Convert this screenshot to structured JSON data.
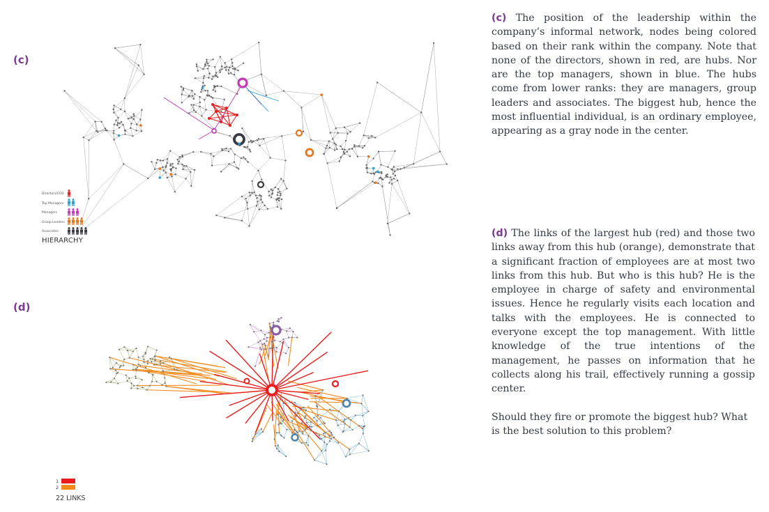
{
  "panel_c": {
    "label": "(c)",
    "legend": {
      "title": "HIERARCHY",
      "rows": [
        {
          "label": "Directors/CEO",
          "count": 1,
          "color": "#e02020"
        },
        {
          "label": "Top Managers",
          "count": 2,
          "color": "#2a9fd6"
        },
        {
          "label": "Managers",
          "count": 3,
          "color": "#c43bb5"
        },
        {
          "label": "Group Leaders",
          "count": 4,
          "color": "#e8731a"
        },
        {
          "label": "Associates",
          "count": 5,
          "color": "#3a3a44"
        }
      ]
    }
  },
  "panel_d": {
    "label": "(d)",
    "legend": {
      "rows": [
        {
          "label": "1",
          "color": "#e81c1c"
        },
        {
          "label": "2",
          "color": "#f28a1e"
        }
      ],
      "title": "22 LINKS"
    }
  },
  "caption_c": {
    "label": "(c)",
    "text": "The position of the leadership within the company’s informal network, nodes being colored based on their rank within the company. Note that none of the directors, shown in red, are hubs. Nor are the top managers, shown in blue. The hubs come from lower ranks: they are managers, group leaders and associates. The biggest hub, hence the most influential individual, is an ordinary employee, appearing as a gray node in the center."
  },
  "caption_d": {
    "label": "(d)",
    "text": "The links of the largest hub (red) and those two links away from this hub (orange), demonstrate that a significant fraction of employees are at most two links from this hub. But who is this hub? He is the employee in charge of safety and environmental issues. Hence he regularly visits each location and talks with the employees. He is connected to everyone except the top management. With little knowledge of the true intentions of the management, he passes on information that he collects along his trail, effectively running a gossip center.",
    "question": "Should they fire or promote the biggest hub? What is the best solution to this problem?"
  },
  "colors": {
    "label_purple": "#7b3a8c",
    "edge_gray": "#8a8a8a",
    "director_red": "#e02020",
    "top_manager_blue": "#2a9fd6",
    "manager_magenta": "#c43bb5",
    "group_leader_orange": "#e8731a",
    "associate_dark": "#3a3a44",
    "hub_red": "#e81c1c",
    "hop2_orange": "#f28a1e",
    "cluster_olive": "#b8bb8a",
    "cluster_lilac": "#c9a3d6",
    "cluster_blue": "#7fb8d6"
  }
}
